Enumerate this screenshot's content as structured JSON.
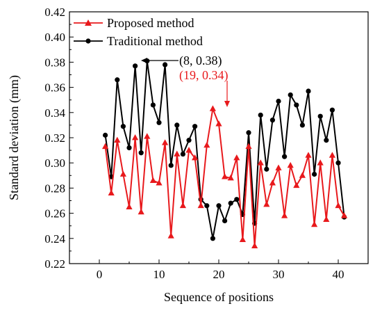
{
  "chart_data": {
    "type": "line",
    "title": "",
    "xlabel": "Sequence of positions",
    "ylabel": "Standard deviation (mm)",
    "xlim": [
      -5,
      45
    ],
    "ylim": [
      0.22,
      0.42
    ],
    "x_ticks": [
      0,
      10,
      20,
      30,
      40
    ],
    "x_tick_labels": [
      "0",
      "10",
      "20",
      "30",
      "40"
    ],
    "y_ticks": [
      0.22,
      0.24,
      0.26,
      0.28,
      0.3,
      0.32,
      0.34,
      0.36,
      0.38,
      0.4,
      0.42
    ],
    "y_tick_labels": [
      "0.22",
      "0.24",
      "0.26",
      "0.28",
      "0.30",
      "0.32",
      "0.34",
      "0.36",
      "0.38",
      "0.40",
      "0.42"
    ],
    "grid": false,
    "legend_position": "top-left",
    "x": [
      1,
      2,
      3,
      4,
      5,
      6,
      7,
      8,
      9,
      10,
      11,
      12,
      13,
      14,
      15,
      16,
      17,
      18,
      19,
      20,
      21,
      22,
      23,
      24,
      25,
      26,
      27,
      28,
      29,
      30,
      31,
      32,
      33,
      34,
      35,
      36,
      37,
      38,
      39,
      40,
      41
    ],
    "series": [
      {
        "name": "Proposed method",
        "color": "#e8191c",
        "marker": "triangle",
        "values": [
          0.313,
          0.276,
          0.318,
          0.291,
          0.265,
          0.32,
          0.261,
          0.321,
          0.286,
          0.284,
          0.316,
          0.242,
          0.307,
          0.266,
          0.31,
          0.304,
          0.266,
          0.314,
          0.343,
          0.331,
          0.289,
          0.288,
          0.304,
          0.239,
          0.313,
          0.234,
          0.3,
          0.267,
          0.284,
          0.296,
          0.258,
          0.298,
          0.282,
          0.29,
          0.306,
          0.251,
          0.3,
          0.255,
          0.306,
          0.266,
          0.258
        ]
      },
      {
        "name": "Traditional method",
        "color": "#000000",
        "marker": "circle",
        "values": [
          0.322,
          0.289,
          0.366,
          0.329,
          0.312,
          0.377,
          0.308,
          0.381,
          0.346,
          0.332,
          0.378,
          0.298,
          0.33,
          0.307,
          0.318,
          0.329,
          0.271,
          0.266,
          0.24,
          0.266,
          0.254,
          0.268,
          0.271,
          0.259,
          0.324,
          0.252,
          0.338,
          0.295,
          0.334,
          0.349,
          0.305,
          0.354,
          0.346,
          0.33,
          0.357,
          0.291,
          0.337,
          0.318,
          0.342,
          0.3,
          0.257
        ]
      }
    ],
    "annotations": [
      {
        "id": "ann_black",
        "text": "(8, 0.38)",
        "point": [
          8,
          0.381
        ],
        "color": "#000000"
      },
      {
        "id": "ann_red",
        "text": "(19, 0.34)",
        "point": [
          19,
          0.343
        ],
        "color": "#e8191c"
      }
    ]
  }
}
